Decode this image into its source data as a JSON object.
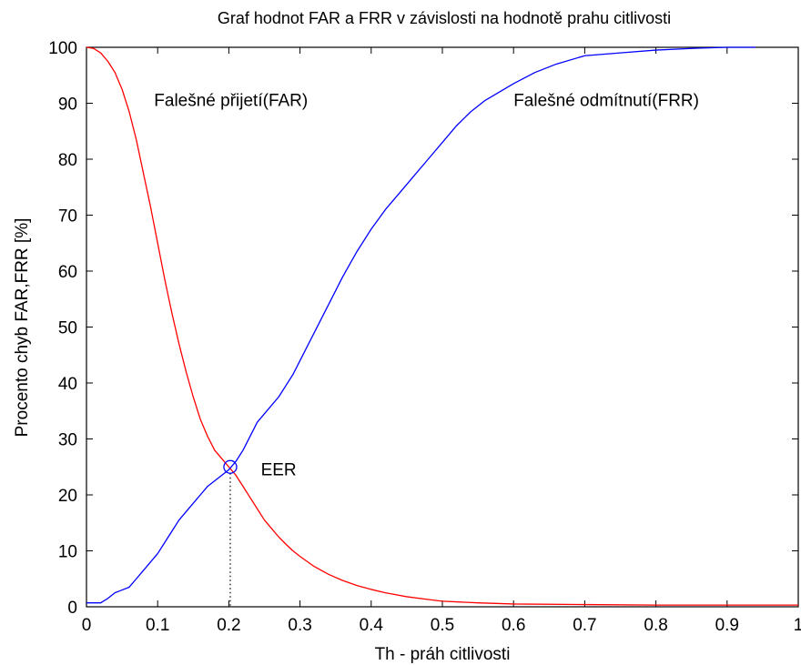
{
  "chart_data": {
    "type": "line",
    "title": "Graf hodnot FAR a FRR v závislosti na hodnotě prahu citlivosti",
    "xlabel": "Th - práh citlivosti",
    "ylabel": "Procento chyb FAR,FRR [%]",
    "xlim": [
      0,
      1
    ],
    "ylim": [
      0,
      100
    ],
    "xticks": [
      0,
      0.1,
      0.2,
      0.3,
      0.4,
      0.5,
      0.6,
      0.7,
      0.8,
      0.9,
      1
    ],
    "xtick_labels": [
      "0",
      "0.1",
      "0.2",
      "0.3",
      "0.4",
      "0.5",
      "0.6",
      "0.7",
      "0.8",
      "0.9",
      "1"
    ],
    "yticks": [
      0,
      10,
      20,
      30,
      40,
      50,
      60,
      70,
      80,
      90,
      100
    ],
    "ytick_labels": [
      "0",
      "10",
      "20",
      "30",
      "40",
      "50",
      "60",
      "70",
      "80",
      "90",
      "100"
    ],
    "grid": false,
    "series": [
      {
        "color": "#ff0000",
        "x": [
          0,
          0.01,
          0.02,
          0.03,
          0.04,
          0.05,
          0.06,
          0.07,
          0.08,
          0.09,
          0.1,
          0.11,
          0.12,
          0.13,
          0.14,
          0.15,
          0.16,
          0.17,
          0.18,
          0.19,
          0.2,
          0.21,
          0.22,
          0.23,
          0.24,
          0.25,
          0.26,
          0.27,
          0.28,
          0.29,
          0.3,
          0.32,
          0.34,
          0.36,
          0.38,
          0.4,
          0.42,
          0.45,
          0.48,
          0.5,
          0.55,
          0.6,
          0.7,
          0.8,
          0.9,
          1.0
        ],
        "y": [
          100,
          99.8,
          99,
          97.5,
          95.5,
          92.5,
          88.5,
          83.5,
          77.5,
          71.5,
          65,
          58.5,
          52.5,
          47,
          42,
          37.5,
          33.5,
          30.5,
          28,
          26.5,
          25,
          23.5,
          21.5,
          19.5,
          17.5,
          15.5,
          14,
          12.5,
          11.2,
          10,
          9,
          7.2,
          5.8,
          4.7,
          3.8,
          3.1,
          2.5,
          1.8,
          1.3,
          1.0,
          0.7,
          0.5,
          0.4,
          0.3,
          0.3,
          0.3
        ]
      },
      {
        "color": "#0000ff",
        "x": [
          0,
          0.02,
          0.03,
          0.04,
          0.05,
          0.06,
          0.07,
          0.08,
          0.09,
          0.1,
          0.11,
          0.12,
          0.13,
          0.14,
          0.15,
          0.16,
          0.17,
          0.18,
          0.19,
          0.2,
          0.21,
          0.22,
          0.23,
          0.24,
          0.25,
          0.26,
          0.27,
          0.28,
          0.29,
          0.3,
          0.32,
          0.34,
          0.36,
          0.38,
          0.4,
          0.42,
          0.44,
          0.46,
          0.48,
          0.5,
          0.52,
          0.54,
          0.56,
          0.58,
          0.6,
          0.63,
          0.66,
          0.7,
          0.75,
          0.8,
          0.85,
          0.9,
          0.94
        ],
        "y": [
          0.7,
          0.7,
          1.5,
          2.5,
          3,
          3.5,
          5,
          6.5,
          8,
          9.5,
          11.5,
          13.5,
          15.5,
          17,
          18.5,
          20,
          21.5,
          22.5,
          23.5,
          24.5,
          26,
          28,
          30.5,
          33,
          34.5,
          36,
          37.5,
          39.5,
          41.5,
          44,
          49,
          54,
          59,
          63.5,
          67.5,
          71,
          74,
          77,
          80,
          83,
          86,
          88.5,
          90.5,
          92,
          93.5,
          95.5,
          97,
          98.5,
          99,
          99.5,
          99.8,
          100,
          100
        ]
      }
    ],
    "annotations": [
      {
        "text": "Falešné přijetí(FAR)",
        "x": 0.095,
        "y": 89.5
      },
      {
        "text": "Falešné odmítnutí(FRR)",
        "x": 0.6,
        "y": 89.5
      },
      {
        "text": "EER",
        "x": 0.245,
        "y": 23.5
      }
    ],
    "eer_point": {
      "x": 0.202,
      "y": 25
    }
  }
}
